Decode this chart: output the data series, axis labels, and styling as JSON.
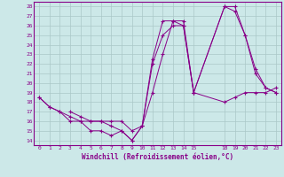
{
  "xlabel": "Windchill (Refroidissement éolien,°C)",
  "bg_color": "#cce8e8",
  "grid_color": "#aac8c8",
  "line_color": "#880088",
  "xlim": [
    -0.5,
    23.5
  ],
  "ylim": [
    13.5,
    28.5
  ],
  "xticks": [
    0,
    1,
    2,
    3,
    4,
    5,
    6,
    7,
    8,
    9,
    10,
    11,
    12,
    13,
    14,
    15,
    18,
    19,
    20,
    21,
    22,
    23
  ],
  "yticks": [
    14,
    15,
    16,
    17,
    18,
    19,
    20,
    21,
    22,
    23,
    24,
    25,
    26,
    27,
    28
  ],
  "series": [
    {
      "x": [
        0,
        1,
        2,
        3,
        4,
        5,
        6,
        7,
        8,
        9,
        10,
        11,
        12,
        13,
        14,
        15,
        18,
        19,
        20,
        21,
        22,
        23
      ],
      "y": [
        18.5,
        17.5,
        17.0,
        16.5,
        16.0,
        15.0,
        15.0,
        14.5,
        15.0,
        14.0,
        15.5,
        19.0,
        23.0,
        26.5,
        26.5,
        19.0,
        28.0,
        27.5,
        25.0,
        21.0,
        19.5,
        19.0
      ]
    },
    {
      "x": [
        0,
        1,
        2,
        3,
        4,
        5,
        6,
        7,
        8,
        9,
        10,
        11,
        12,
        13,
        14,
        15,
        18,
        19,
        20,
        21,
        22,
        23
      ],
      "y": [
        18.5,
        17.5,
        17.0,
        16.0,
        16.0,
        16.0,
        16.0,
        16.0,
        16.0,
        15.0,
        15.5,
        22.0,
        25.0,
        26.0,
        26.0,
        19.0,
        18.0,
        18.5,
        19.0,
        19.0,
        19.0,
        19.5
      ]
    },
    {
      "x": [
        3,
        4,
        5,
        6,
        7,
        8,
        9,
        10,
        11,
        12,
        13,
        14,
        15,
        18,
        19,
        20,
        21,
        22,
        23
      ],
      "y": [
        17.0,
        16.5,
        16.0,
        16.0,
        15.5,
        15.0,
        14.0,
        15.5,
        22.5,
        26.5,
        26.5,
        26.0,
        19.0,
        28.0,
        28.0,
        25.0,
        21.5,
        19.5,
        19.0
      ]
    }
  ]
}
